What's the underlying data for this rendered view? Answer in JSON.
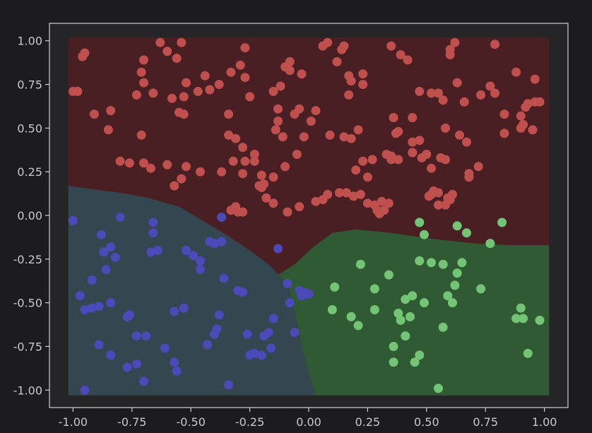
{
  "chart_data": {
    "type": "scatter",
    "title": "",
    "xlabel": "",
    "ylabel": "",
    "xlim": [
      -1.1,
      1.1
    ],
    "ylim": [
      -1.1,
      1.1
    ],
    "x_ticks": [
      "-1.00",
      "-0.75",
      "-0.50",
      "-0.25",
      "0.00",
      "0.25",
      "0.50",
      "0.75",
      "1.00"
    ],
    "y_ticks": [
      "1.00",
      "0.75",
      "0.50",
      "0.25",
      "0.00",
      "-0.25",
      "-0.50",
      "-0.75",
      "-1.00"
    ],
    "grid": false,
    "legend": "none",
    "regions": [
      {
        "class": "red",
        "color": "#4a1f24"
      },
      {
        "class": "blue",
        "color": "#344650"
      },
      {
        "class": "green",
        "color": "#2f5a33"
      }
    ],
    "series": [
      {
        "color": "#c0504d",
        "points": [
          [
            -0.95,
            0.93
          ],
          [
            -0.96,
            0.91
          ],
          [
            -0.84,
            0.6
          ],
          [
            -0.85,
            0.49
          ],
          [
            -0.8,
            0.31
          ],
          [
            -0.73,
            0.69
          ],
          [
            -0.7,
            0.89
          ],
          [
            -0.71,
            0.82
          ],
          [
            -0.7,
            0.76
          ],
          [
            -0.71,
            0.46
          ],
          [
            -0.7,
            0.3
          ],
          [
            -0.66,
            0.7
          ],
          [
            -0.63,
            0.99
          ],
          [
            -0.6,
            0.94
          ],
          [
            -0.56,
            0.9
          ],
          [
            -0.54,
            0.99
          ],
          [
            -0.52,
            0.76
          ],
          [
            -0.53,
            0.68
          ],
          [
            -0.55,
            0.59
          ],
          [
            -0.53,
            0.58
          ],
          [
            -0.52,
            0.28
          ],
          [
            -0.6,
            0.29
          ],
          [
            -0.58,
            0.67
          ],
          [
            -0.47,
            0.71
          ],
          [
            -0.44,
            0.8
          ],
          [
            -0.42,
            0.72
          ],
          [
            -0.38,
            0.75
          ],
          [
            -0.34,
            0.58
          ],
          [
            -0.33,
            0.82
          ],
          [
            -0.29,
            0.86
          ],
          [
            -0.27,
            0.96
          ],
          [
            -0.27,
            0.79
          ],
          [
            -0.25,
            0.68
          ],
          [
            -0.34,
            0.46
          ],
          [
            -0.31,
            0.44
          ],
          [
            -0.28,
            0.39
          ],
          [
            -0.32,
            0.31
          ],
          [
            -0.27,
            0.31
          ],
          [
            -0.28,
            0.24
          ],
          [
            -0.21,
            0.17
          ],
          [
            -0.2,
            0.16
          ],
          [
            -0.19,
            0.18
          ],
          [
            -0.15,
            0.22
          ],
          [
            -0.14,
            0.49
          ],
          [
            -0.11,
            0.45
          ],
          [
            -0.13,
            0.54
          ],
          [
            -0.13,
            0.61
          ],
          [
            -0.15,
            0.71
          ],
          [
            -0.12,
            0.74
          ],
          [
            -0.1,
            0.85
          ],
          [
            -0.08,
            0.83
          ],
          [
            -0.08,
            0.88
          ],
          [
            -0.03,
            0.81
          ],
          [
            -0.06,
            0.58
          ],
          [
            -0.04,
            0.61
          ],
          [
            -0.02,
            0.45
          ],
          [
            0.01,
            0.54
          ],
          [
            0.03,
            0.6
          ],
          [
            0.06,
            0.97
          ],
          [
            0.08,
            0.99
          ],
          [
            0.12,
            0.88
          ],
          [
            0.14,
            0.95
          ],
          [
            0.15,
            0.97
          ],
          [
            0.17,
            0.69
          ],
          [
            0.17,
            0.8
          ],
          [
            0.18,
            0.77
          ],
          [
            0.23,
            0.81
          ],
          [
            0.23,
            0.75
          ],
          [
            0.21,
            0.49
          ],
          [
            0.23,
            0.31
          ],
          [
            0.27,
            0.32
          ],
          [
            0.35,
            0.97
          ],
          [
            0.39,
            0.92
          ],
          [
            0.42,
            0.89
          ],
          [
            0.37,
            0.47
          ],
          [
            0.38,
            0.48
          ],
          [
            0.36,
            0.56
          ],
          [
            0.44,
            0.56
          ],
          [
            0.47,
            0.71
          ],
          [
            0.52,
            0.7
          ],
          [
            0.55,
            0.7
          ],
          [
            0.57,
            0.66
          ],
          [
            0.58,
            0.5
          ],
          [
            0.6,
            0.95
          ],
          [
            0.6,
            0.92
          ],
          [
            0.62,
            0.99
          ],
          [
            0.63,
            0.76
          ],
          [
            0.66,
            0.65
          ],
          [
            0.64,
            0.46
          ],
          [
            0.67,
            0.42
          ],
          [
            0.68,
            0.24
          ],
          [
            0.68,
            0.22
          ],
          [
            0.72,
            0.28
          ],
          [
            0.73,
            0.69
          ],
          [
            0.77,
            0.74
          ],
          [
            0.79,
            0.7
          ],
          [
            0.79,
            0.98
          ],
          [
            0.83,
            0.58
          ],
          [
            0.88,
            0.82
          ],
          [
            0.9,
            0.57
          ],
          [
            0.9,
            0.5
          ],
          [
            0.91,
            0.52
          ],
          [
            0.92,
            0.62
          ],
          [
            0.93,
            0.64
          ],
          [
            0.95,
            0.49
          ],
          [
            0.96,
            0.78
          ],
          [
            0.96,
            0.65
          ],
          [
            0.98,
            0.65
          ],
          [
            0.83,
            0.47
          ],
          [
            0.52,
            0.12
          ],
          [
            0.53,
            0.14
          ],
          [
            0.55,
            0.13
          ],
          [
            0.58,
            0.06
          ],
          [
            0.6,
            0.09
          ],
          [
            0.59,
            0.1
          ],
          [
            0.61,
            0.12
          ],
          [
            0.58,
            0.32
          ],
          [
            0.56,
            0.33
          ],
          [
            0.44,
            0.42
          ],
          [
            0.44,
            0.36
          ],
          [
            0.38,
            0.32
          ],
          [
            0.35,
            0.32
          ],
          [
            0.33,
            0.35
          ],
          [
            0.35,
            0.34
          ],
          [
            0.34,
            0.07
          ],
          [
            0.32,
            0.03
          ],
          [
            0.31,
            0.08
          ],
          [
            0.3,
            0.01
          ],
          [
            0.29,
            0.03
          ],
          [
            0.28,
            0.06
          ],
          [
            0.25,
            0.07
          ],
          [
            0.22,
            0.12
          ],
          [
            0.19,
            0.11
          ],
          [
            0.16,
            0.13
          ],
          [
            0.13,
            0.13
          ],
          [
            0.08,
            0.12
          ],
          [
            0.06,
            0.09
          ],
          [
            0.03,
            0.08
          ],
          [
            -0.04,
            0.05
          ],
          [
            -0.09,
            0.02
          ],
          [
            -0.15,
            0.07
          ],
          [
            -0.18,
            0.1
          ],
          [
            -0.3,
            0.02
          ],
          [
            -0.33,
            0.03
          ],
          [
            -0.31,
            0.05
          ],
          [
            -0.28,
            0.02
          ],
          [
            -0.37,
            0.25
          ],
          [
            -0.46,
            0.25
          ],
          [
            -0.54,
            0.21
          ],
          [
            -0.57,
            0.17
          ],
          [
            -0.67,
            0.27
          ],
          [
            -0.76,
            0.3
          ],
          [
            -0.98,
            0.71
          ],
          [
            -0.91,
            0.58
          ],
          [
            -1.0,
            0.71
          ],
          [
            0.44,
            0.36
          ],
          [
            0.47,
            0.43
          ],
          [
            0.48,
            0.33
          ],
          [
            0.5,
            0.35
          ],
          [
            0.52,
            0.27
          ],
          [
            0.55,
            0.06
          ],
          [
            0.51,
            0.11
          ],
          [
            0.09,
            0.46
          ],
          [
            0.15,
            0.45
          ],
          [
            0.18,
            0.44
          ],
          [
            0.25,
            0.22
          ],
          [
            0.2,
            0.26
          ],
          [
            -0.05,
            0.35
          ],
          [
            -0.1,
            0.28
          ],
          [
            -0.2,
            0.23
          ],
          [
            -0.23,
            0.31
          ],
          [
            -0.23,
            0.35
          ]
        ]
      },
      {
        "color": "#4b4ab8",
        "points": [
          [
            -1.0,
            -0.03
          ],
          [
            -0.97,
            -0.46
          ],
          [
            -0.95,
            -1.0
          ],
          [
            -0.92,
            -0.37
          ],
          [
            -0.92,
            -0.53
          ],
          [
            -0.89,
            -0.52
          ],
          [
            -0.88,
            -0.11
          ],
          [
            -0.87,
            -0.21
          ],
          [
            -0.86,
            -0.31
          ],
          [
            -0.84,
            -0.18
          ],
          [
            -0.84,
            -0.5
          ],
          [
            -0.84,
            -0.8
          ],
          [
            -0.82,
            -0.24
          ],
          [
            -0.8,
            -0.01
          ],
          [
            -0.77,
            -0.58
          ],
          [
            -0.76,
            -0.57
          ],
          [
            -0.77,
            -0.87
          ],
          [
            -0.73,
            -0.69
          ],
          [
            -0.73,
            -0.85
          ],
          [
            -0.7,
            -0.95
          ],
          [
            -0.69,
            -0.69
          ],
          [
            -0.67,
            -0.21
          ],
          [
            -0.66,
            -0.1
          ],
          [
            -0.66,
            -0.04
          ],
          [
            -0.64,
            -0.2
          ],
          [
            -0.61,
            -0.76
          ],
          [
            -0.57,
            -0.55
          ],
          [
            -0.57,
            -0.84
          ],
          [
            -0.56,
            -0.89
          ],
          [
            -0.52,
            -0.2
          ],
          [
            -0.53,
            -0.53
          ],
          [
            -0.49,
            -0.23
          ],
          [
            -0.46,
            -0.31
          ],
          [
            -0.46,
            -0.26
          ],
          [
            -0.43,
            -0.74
          ],
          [
            -0.42,
            -0.15
          ],
          [
            -0.4,
            -0.16
          ],
          [
            -0.4,
            -0.68
          ],
          [
            -0.39,
            -0.65
          ],
          [
            -0.38,
            -0.57
          ],
          [
            -0.37,
            -0.15
          ],
          [
            -0.37,
            -0.01
          ],
          [
            -0.36,
            -0.36
          ],
          [
            -0.34,
            -0.97
          ],
          [
            -0.3,
            -0.43
          ],
          [
            -0.28,
            -0.44
          ],
          [
            -0.26,
            -0.68
          ],
          [
            -0.25,
            -0.8
          ],
          [
            -0.23,
            -0.79
          ],
          [
            -0.2,
            -0.8
          ],
          [
            -0.19,
            -0.69
          ],
          [
            -0.17,
            -0.67
          ],
          [
            -0.16,
            -0.76
          ],
          [
            -0.15,
            -0.59
          ],
          [
            -0.13,
            -0.19
          ],
          [
            -0.09,
            -0.39
          ],
          [
            -0.08,
            -0.5
          ],
          [
            -0.06,
            -0.67
          ],
          [
            -0.04,
            -0.43
          ],
          [
            -0.03,
            -0.46
          ],
          [
            -0.02,
            -0.44
          ],
          [
            -0.01,
            -0.45
          ],
          [
            0.0,
            -0.45
          ],
          [
            -0.89,
            -0.74
          ],
          [
            -0.95,
            -0.54
          ]
        ]
      },
      {
        "color": "#74c476",
        "points": [
          [
            0.1,
            -0.54
          ],
          [
            0.11,
            -0.41
          ],
          [
            0.18,
            -0.58
          ],
          [
            0.21,
            -0.63
          ],
          [
            0.22,
            -0.28
          ],
          [
            0.28,
            -0.42
          ],
          [
            0.28,
            -0.54
          ],
          [
            0.34,
            -0.34
          ],
          [
            0.36,
            -0.84
          ],
          [
            0.36,
            -0.75
          ],
          [
            0.38,
            -0.56
          ],
          [
            0.39,
            -0.6
          ],
          [
            0.41,
            -0.69
          ],
          [
            0.41,
            -0.48
          ],
          [
            0.43,
            -0.58
          ],
          [
            0.44,
            -0.46
          ],
          [
            0.45,
            -0.84
          ],
          [
            0.47,
            -0.8
          ],
          [
            0.47,
            -0.26
          ],
          [
            0.47,
            -0.04
          ],
          [
            0.49,
            -0.11
          ],
          [
            0.49,
            -0.5
          ],
          [
            0.52,
            -0.27
          ],
          [
            0.55,
            -0.99
          ],
          [
            0.57,
            -0.28
          ],
          [
            0.57,
            -0.64
          ],
          [
            0.59,
            -0.46
          ],
          [
            0.61,
            -0.5
          ],
          [
            0.62,
            -0.4
          ],
          [
            0.63,
            -0.33
          ],
          [
            0.63,
            -0.06
          ],
          [
            0.65,
            -0.27
          ],
          [
            0.67,
            -0.1
          ],
          [
            0.73,
            -0.42
          ],
          [
            0.77,
            -0.16
          ],
          [
            0.82,
            -0.04
          ],
          [
            0.88,
            -0.59
          ],
          [
            0.9,
            -0.53
          ],
          [
            0.93,
            -0.79
          ],
          [
            0.98,
            -0.6
          ],
          [
            0.91,
            -0.59
          ]
        ]
      }
    ]
  }
}
